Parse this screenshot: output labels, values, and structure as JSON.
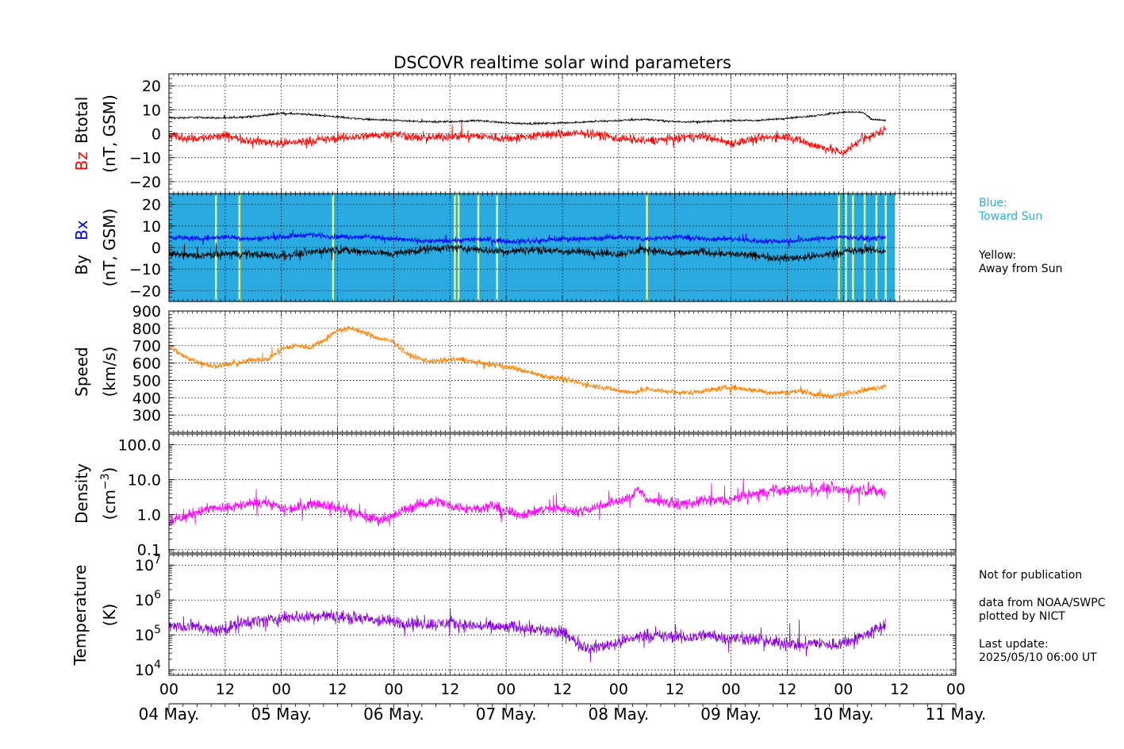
{
  "figure": {
    "title": "DSCOVR realtime solar wind parameters",
    "time_axis": {
      "start_hour": 0,
      "end_hour": 168,
      "tick_labels": [
        "00",
        "12",
        "00",
        "12",
        "00",
        "12",
        "00",
        "12",
        "00",
        "12",
        "00",
        "12",
        "00",
        "12",
        "00"
      ],
      "day_labels": [
        "04 May.",
        "05 May.",
        "06 May.",
        "07 May.",
        "08 May.",
        "09 May.",
        "10 May.",
        "11 May."
      ]
    },
    "legend_notes": {
      "blue_label": "Blue:",
      "blue_desc": "Toward Sun",
      "yellow_label": "Yellow:",
      "yellow_desc": "Away from Sun"
    },
    "footer_notes": {
      "disclaimer": "Not for publication",
      "source": "data from NOAA/SWPC",
      "plotter": "plotted by NICT",
      "update_label": "Last update:",
      "update_time": "2025/05/10 06:00 UT"
    },
    "colors": {
      "btotal": "#000000",
      "bz": "#ff0000",
      "bx": "#0000ff",
      "by": "#000000",
      "imf_toward": "#29abe2",
      "imf_away": "#ffff80",
      "speed": "#ff8000",
      "density": "#ff00ff",
      "temperature": "#8800dd",
      "note_blue": "#29abe2"
    }
  },
  "chart_data": [
    {
      "type": "line",
      "panel": "magnetic_field",
      "ylabel_parts": [
        "Bz",
        "Btotal",
        "(nT, GSM)"
      ],
      "ylim": [
        -25,
        25
      ],
      "yticks": [
        -20,
        -10,
        0,
        10,
        20
      ],
      "grid": true,
      "x_units": "hours since 04 May. 00 UT",
      "series": [
        {
          "name": "Btotal",
          "x": [
            0,
            6,
            12,
            18,
            24,
            30,
            36,
            42,
            48,
            54,
            60,
            66,
            72,
            78,
            84,
            90,
            96,
            102,
            108,
            114,
            120,
            126,
            132,
            138,
            144,
            148,
            150,
            153
          ],
          "values": [
            6.5,
            6.8,
            6.5,
            7.2,
            8.5,
            8.0,
            7.0,
            6.0,
            5.5,
            5.0,
            5.0,
            5.5,
            4.5,
            4.2,
            4.5,
            5.0,
            5.5,
            6.0,
            5.0,
            5.0,
            5.5,
            5.5,
            6.5,
            7.5,
            9.0,
            9.0,
            6.0,
            5.5
          ]
        },
        {
          "name": "Bz",
          "x": [
            0,
            6,
            12,
            18,
            24,
            30,
            36,
            42,
            48,
            54,
            60,
            66,
            72,
            78,
            84,
            90,
            96,
            102,
            108,
            114,
            120,
            126,
            132,
            138,
            142,
            144,
            146,
            148,
            150,
            153
          ],
          "values": [
            -1,
            -2,
            -1,
            -3,
            -4,
            -3,
            -2,
            -1,
            0,
            -2,
            -1,
            -1,
            -2,
            -1,
            0,
            0,
            -2,
            -3,
            -2,
            -1,
            -4,
            -2,
            -1,
            -5,
            -7,
            -8,
            -5,
            -2,
            -1,
            2
          ]
        }
      ]
    },
    {
      "type": "line",
      "panel": "imf_components",
      "ylabel_parts": [
        "Bx",
        "By",
        "(nT, GSM)"
      ],
      "ylim": [
        -25,
        25
      ],
      "yticks": [
        -20,
        -10,
        0,
        10,
        20
      ],
      "grid": true,
      "background_sector": {
        "toward_sun_end_hour": 155
      },
      "away_sector_hours": [
        10,
        15,
        35,
        61,
        61.8,
        66,
        70,
        102,
        143,
        144.5,
        146,
        148.5,
        151,
        153
      ],
      "series": [
        {
          "name": "Bx",
          "x": [
            0,
            6,
            12,
            18,
            24,
            30,
            36,
            42,
            48,
            54,
            60,
            66,
            72,
            78,
            84,
            90,
            96,
            102,
            108,
            114,
            120,
            126,
            132,
            138,
            144,
            150,
            153
          ],
          "values": [
            5,
            4,
            5,
            4,
            5,
            6,
            5,
            5,
            4,
            3,
            3,
            4,
            3,
            3,
            4,
            4,
            5,
            4,
            5,
            4,
            4,
            3,
            3,
            4,
            5,
            4,
            5
          ]
        },
        {
          "name": "By",
          "x": [
            0,
            6,
            12,
            18,
            24,
            30,
            36,
            42,
            48,
            54,
            60,
            66,
            72,
            78,
            84,
            90,
            96,
            102,
            108,
            114,
            120,
            126,
            132,
            138,
            144,
            150,
            153
          ],
          "values": [
            -3,
            -4,
            -3,
            -3,
            -4,
            -2,
            -1,
            -2,
            -3,
            -1,
            0,
            -1,
            -2,
            -1,
            -2,
            -2,
            -3,
            -1,
            -3,
            -2,
            -3,
            -4,
            -5,
            -4,
            -2,
            -1,
            -2
          ]
        }
      ]
    },
    {
      "type": "line",
      "panel": "speed",
      "ylabel_parts": [
        "Speed",
        "(km/s)"
      ],
      "ylim": [
        200,
        900
      ],
      "yticks": [
        300,
        400,
        500,
        600,
        700,
        800,
        900
      ],
      "grid": true,
      "series": [
        {
          "name": "Speed",
          "x": [
            0,
            3,
            6,
            9,
            12,
            15,
            18,
            21,
            24,
            27,
            30,
            33,
            36,
            39,
            42,
            45,
            48,
            51,
            54,
            57,
            60,
            63,
            66,
            69,
            72,
            75,
            78,
            81,
            84,
            87,
            90,
            93,
            96,
            99,
            102,
            105,
            108,
            111,
            114,
            117,
            120,
            123,
            126,
            129,
            132,
            135,
            138,
            141,
            144,
            147,
            150,
            153
          ],
          "values": [
            700,
            640,
            610,
            580,
            590,
            600,
            620,
            620,
            680,
            700,
            690,
            730,
            790,
            800,
            770,
            740,
            720,
            650,
            620,
            610,
            620,
            620,
            600,
            590,
            580,
            560,
            540,
            520,
            510,
            490,
            470,
            460,
            440,
            430,
            450,
            440,
            430,
            430,
            440,
            450,
            460,
            450,
            440,
            430,
            430,
            440,
            420,
            410,
            420,
            440,
            450,
            470
          ]
        }
      ]
    },
    {
      "type": "line",
      "panel": "density",
      "ylabel_parts": [
        "Density",
        "(cm",
        "−3",
        ")"
      ],
      "yscale": "log",
      "ylim": [
        0.08,
        200
      ],
      "yticks": [
        0.1,
        1.0,
        10.0,
        100.0
      ],
      "ytick_labels": [
        "0.1",
        "1.0",
        "10.0",
        "100.0"
      ],
      "grid": true,
      "series": [
        {
          "name": "Density",
          "x": [
            0,
            3,
            6,
            9,
            12,
            15,
            18,
            21,
            24,
            27,
            30,
            33,
            36,
            39,
            42,
            45,
            48,
            51,
            54,
            57,
            60,
            63,
            66,
            69,
            72,
            75,
            78,
            81,
            84,
            87,
            90,
            93,
            96,
            99,
            100,
            102,
            105,
            108,
            111,
            114,
            117,
            120,
            123,
            126,
            129,
            132,
            135,
            138,
            141,
            144,
            147,
            150,
            153
          ],
          "values": [
            0.6,
            0.8,
            1.2,
            1.5,
            1.5,
            1.8,
            2.0,
            2.2,
            1.5,
            1.5,
            2.0,
            2.0,
            1.5,
            1.2,
            0.8,
            0.7,
            0.9,
            1.5,
            2.0,
            2.5,
            1.8,
            1.5,
            1.5,
            1.8,
            1.2,
            1.0,
            1.2,
            1.5,
            1.5,
            1.2,
            1.5,
            2.0,
            2.5,
            3.0,
            6.0,
            2.5,
            2.5,
            2.0,
            2.0,
            2.5,
            2.5,
            2.5,
            3.5,
            4.0,
            5.0,
            5.0,
            5.5,
            5.0,
            6.0,
            5.0,
            5.0,
            5.0,
            4.0
          ]
        }
      ]
    },
    {
      "type": "line",
      "panel": "temperature",
      "ylabel_parts": [
        "Temperature",
        "(K)"
      ],
      "yscale": "log",
      "ylim": [
        7000,
        20000000
      ],
      "yticks": [
        10000,
        100000,
        1000000,
        10000000
      ],
      "ytick_label_parts": [
        [
          "10",
          "4"
        ],
        [
          "10",
          "5"
        ],
        [
          "10",
          "6"
        ],
        [
          "10",
          "7"
        ]
      ],
      "grid": true,
      "series": [
        {
          "name": "Temperature",
          "x": [
            0,
            3,
            6,
            9,
            12,
            15,
            18,
            21,
            24,
            27,
            30,
            33,
            36,
            39,
            42,
            45,
            48,
            51,
            54,
            57,
            60,
            63,
            66,
            69,
            72,
            75,
            78,
            81,
            84,
            87,
            90,
            93,
            96,
            99,
            102,
            105,
            108,
            111,
            114,
            117,
            120,
            123,
            126,
            129,
            132,
            135,
            138,
            141,
            144,
            147,
            150,
            153
          ],
          "values": [
            200000,
            160000,
            180000,
            130000,
            150000,
            200000,
            250000,
            260000,
            300000,
            340000,
            320000,
            360000,
            330000,
            310000,
            280000,
            250000,
            240000,
            220000,
            210000,
            200000,
            220000,
            190000,
            180000,
            170000,
            160000,
            170000,
            150000,
            130000,
            110000,
            60000,
            40000,
            50000,
            60000,
            80000,
            100000,
            90000,
            90000,
            80000,
            100000,
            90000,
            80000,
            80000,
            70000,
            60000,
            60000,
            50000,
            60000,
            50000,
            60000,
            80000,
            120000,
            180000
          ]
        }
      ]
    }
  ]
}
